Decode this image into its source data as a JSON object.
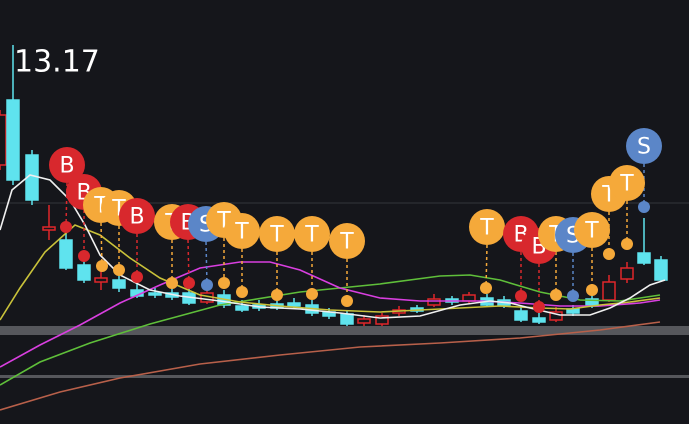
{
  "price_label": "13.17",
  "markers": [
    {
      "label": "B"
    },
    {
      "label": "B"
    },
    {
      "label": "T"
    },
    {
      "label": "T"
    },
    {
      "label": "B"
    },
    {
      "label": "T"
    },
    {
      "label": "B"
    },
    {
      "label": "S"
    },
    {
      "label": "T"
    },
    {
      "label": "T"
    },
    {
      "label": "T"
    },
    {
      "label": "T"
    },
    {
      "label": "T"
    },
    {
      "label": "T"
    },
    {
      "label": "B"
    },
    {
      "label": "B"
    },
    {
      "label": "T"
    },
    {
      "label": "S"
    },
    {
      "label": "T"
    },
    {
      "label": "T"
    },
    {
      "label": "T"
    },
    {
      "label": "S"
    }
  ]
}
